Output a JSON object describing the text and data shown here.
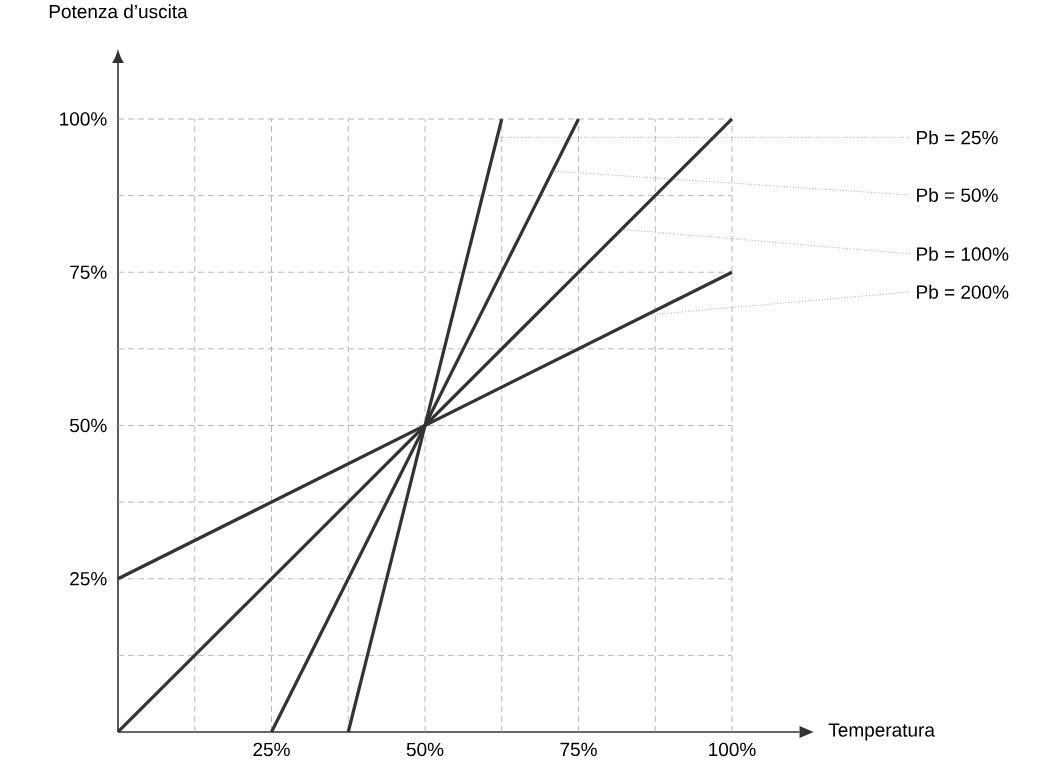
{
  "chart_data": {
    "type": "line",
    "xlabel": "Temperatura",
    "ylabel": "Potenza d’uscita",
    "xlim": [
      0,
      111
    ],
    "ylim": [
      0,
      100
    ],
    "xticks": [
      {
        "value": 12.5,
        "label": null
      },
      {
        "value": 25,
        "label": "25%"
      },
      {
        "value": 37.5,
        "label": null
      },
      {
        "value": 50,
        "label": "50%"
      },
      {
        "value": 62.5,
        "label": null
      },
      {
        "value": 75,
        "label": "75%"
      },
      {
        "value": 87.5,
        "label": null
      },
      {
        "value": 100,
        "label": "100%"
      }
    ],
    "yticks": [
      {
        "value": 12.5,
        "label": null
      },
      {
        "value": 25,
        "label": "25%"
      },
      {
        "value": 37.5,
        "label": null
      },
      {
        "value": 50,
        "label": "50%"
      },
      {
        "value": 62.5,
        "label": null
      },
      {
        "value": 75,
        "label": "75%"
      },
      {
        "value": 87.5,
        "label": null
      },
      {
        "value": 100,
        "label": "100%"
      }
    ],
    "grid": true,
    "legend": false,
    "marker": "none",
    "line_style": "solid",
    "series": [
      {
        "name": "Pb = 25%",
        "color": "#333333",
        "x": [
          37.5,
          62.5
        ],
        "values": [
          0,
          100
        ]
      },
      {
        "name": "Pb = 50%",
        "color": "#333333",
        "x": [
          25,
          75
        ],
        "values": [
          0,
          100
        ]
      },
      {
        "name": "Pb = 100%",
        "color": "#333333",
        "x": [
          0,
          100
        ],
        "values": [
          0,
          100
        ]
      },
      {
        "name": "Pb = 200%",
        "color": "#333333",
        "x": [
          0,
          100
        ],
        "values": [
          25,
          75
        ]
      }
    ]
  }
}
